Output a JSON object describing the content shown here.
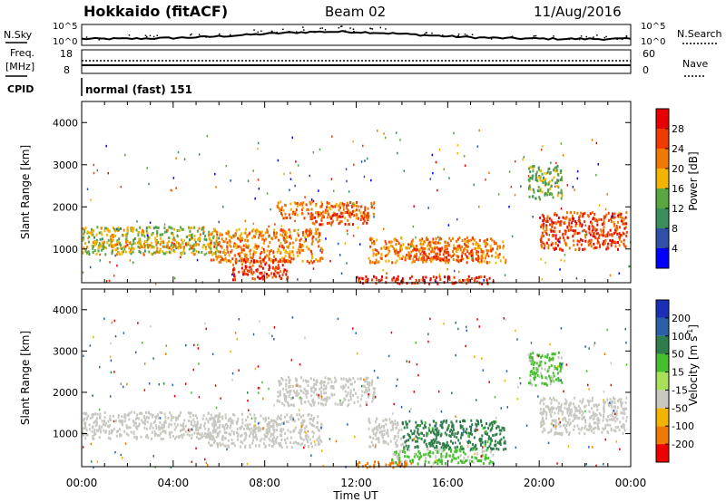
{
  "header": {
    "station": "Hokkaido (fitACF)",
    "beam": "Beam 02",
    "date": "11/Aug/2016"
  },
  "noise_panel": {
    "left_label": "N.Sky",
    "right_label": "N.Search",
    "ticks": [
      "10^5",
      "10^0"
    ]
  },
  "freq_panel": {
    "left_label_1": "Freq.",
    "left_label_2": "[MHz]",
    "right_label": "Nave",
    "left_ticks": [
      "18",
      "8"
    ],
    "right_ticks": [
      "60",
      "0"
    ]
  },
  "cpid_panel": {
    "label": "CPID",
    "mode": "normal (fast) 151"
  },
  "axes": {
    "ylabel": "Slant Range [km]",
    "xlabel": "Time UT",
    "time_ticks": [
      "00:00",
      "04:00",
      "08:00",
      "12:00",
      "16:00",
      "20:00",
      "00:00"
    ],
    "range_ticks": [
      "1000",
      "2000",
      "3000",
      "4000"
    ]
  },
  "power_scale": {
    "label": "Power [dB]",
    "ticks": [
      "4",
      "8",
      "12",
      "16",
      "20",
      "24",
      "28"
    ],
    "colors": [
      "#0000ff",
      "#2f4fa8",
      "#3c8f5a",
      "#5aa640",
      "#f2b400",
      "#f07a00",
      "#ef3b00",
      "#e60000"
    ]
  },
  "velocity_scale": {
    "label": "Velocity [m s",
    "label_sup": "-1",
    "label_end": "]",
    "ticks": [
      "200",
      "100",
      "50",
      "15",
      "-15",
      "-50",
      "-100",
      "-200"
    ],
    "colors": [
      "#1a2fb8",
      "#2b5fa8",
      "#2f7d4a",
      "#44c02c",
      "#a8e05a",
      "#c8c8c0",
      "#f2b400",
      "#f07a00",
      "#ee0000"
    ]
  },
  "chart_data": [
    {
      "type": "heatmap",
      "title": "Power",
      "x": "time (hours UT)",
      "y": "slant range (km)",
      "xlim": [
        0,
        24
      ],
      "ylim": [
        200,
        4500
      ],
      "color_scale": "Power [dB]",
      "clim": [
        0,
        30
      ],
      "regions": [
        {
          "t0": 0.0,
          "t1": 6.0,
          "r0": 900,
          "r1": 1550,
          "value": 16
        },
        {
          "t0": 1.0,
          "t1": 5.0,
          "r0": 1050,
          "r1": 1200,
          "value": 20
        },
        {
          "t0": 5.5,
          "t1": 10.5,
          "r0": 700,
          "r1": 1500,
          "value": 22
        },
        {
          "t0": 6.5,
          "t1": 9.0,
          "r0": 300,
          "r1": 800,
          "value": 27
        },
        {
          "t0": 8.5,
          "t1": 12.8,
          "r0": 1750,
          "r1": 2150,
          "value": 23
        },
        {
          "t0": 10.0,
          "t1": 12.5,
          "r0": 1600,
          "r1": 1900,
          "value": 26
        },
        {
          "t0": 12.5,
          "t1": 18.5,
          "r0": 700,
          "r1": 1300,
          "value": 22
        },
        {
          "t0": 14.5,
          "t1": 17.5,
          "r0": 750,
          "r1": 1050,
          "value": 26
        },
        {
          "t0": 12.0,
          "t1": 18.0,
          "r0": 200,
          "r1": 380,
          "value": 28
        },
        {
          "t0": 20.0,
          "t1": 23.8,
          "r0": 1000,
          "r1": 1900,
          "value": 26
        },
        {
          "t0": 19.5,
          "t1": 21.0,
          "r0": 2200,
          "r1": 3000,
          "value": 14
        }
      ]
    },
    {
      "type": "heatmap",
      "title": "Velocity",
      "x": "time (hours UT)",
      "y": "slant range (km)",
      "xlim": [
        0,
        24
      ],
      "ylim": [
        200,
        4500
      ],
      "color_scale": "Velocity [m s-1]",
      "clim": [
        -200,
        200
      ],
      "regions": [
        {
          "t0": 0.0,
          "t1": 6.0,
          "r0": 900,
          "r1": 1550,
          "value": 0
        },
        {
          "t0": 5.5,
          "t1": 10.5,
          "r0": 700,
          "r1": 1500,
          "value": 0
        },
        {
          "t0": 8.5,
          "t1": 12.8,
          "r0": 1700,
          "r1": 2400,
          "value": 0
        },
        {
          "t0": 12.5,
          "t1": 14.0,
          "r0": 700,
          "r1": 1400,
          "value": 0
        },
        {
          "t0": 14.0,
          "t1": 18.5,
          "r0": 650,
          "r1": 1350,
          "value": 60
        },
        {
          "t0": 13.5,
          "t1": 18.0,
          "r0": 300,
          "r1": 650,
          "value": 20
        },
        {
          "t0": 12.0,
          "t1": 14.5,
          "r0": 200,
          "r1": 350,
          "value": -60
        },
        {
          "t0": 20.0,
          "t1": 23.8,
          "r0": 1000,
          "r1": 1900,
          "value": 0
        },
        {
          "t0": 19.5,
          "t1": 21.0,
          "r0": 2200,
          "r1": 3000,
          "value": 20
        }
      ]
    }
  ]
}
